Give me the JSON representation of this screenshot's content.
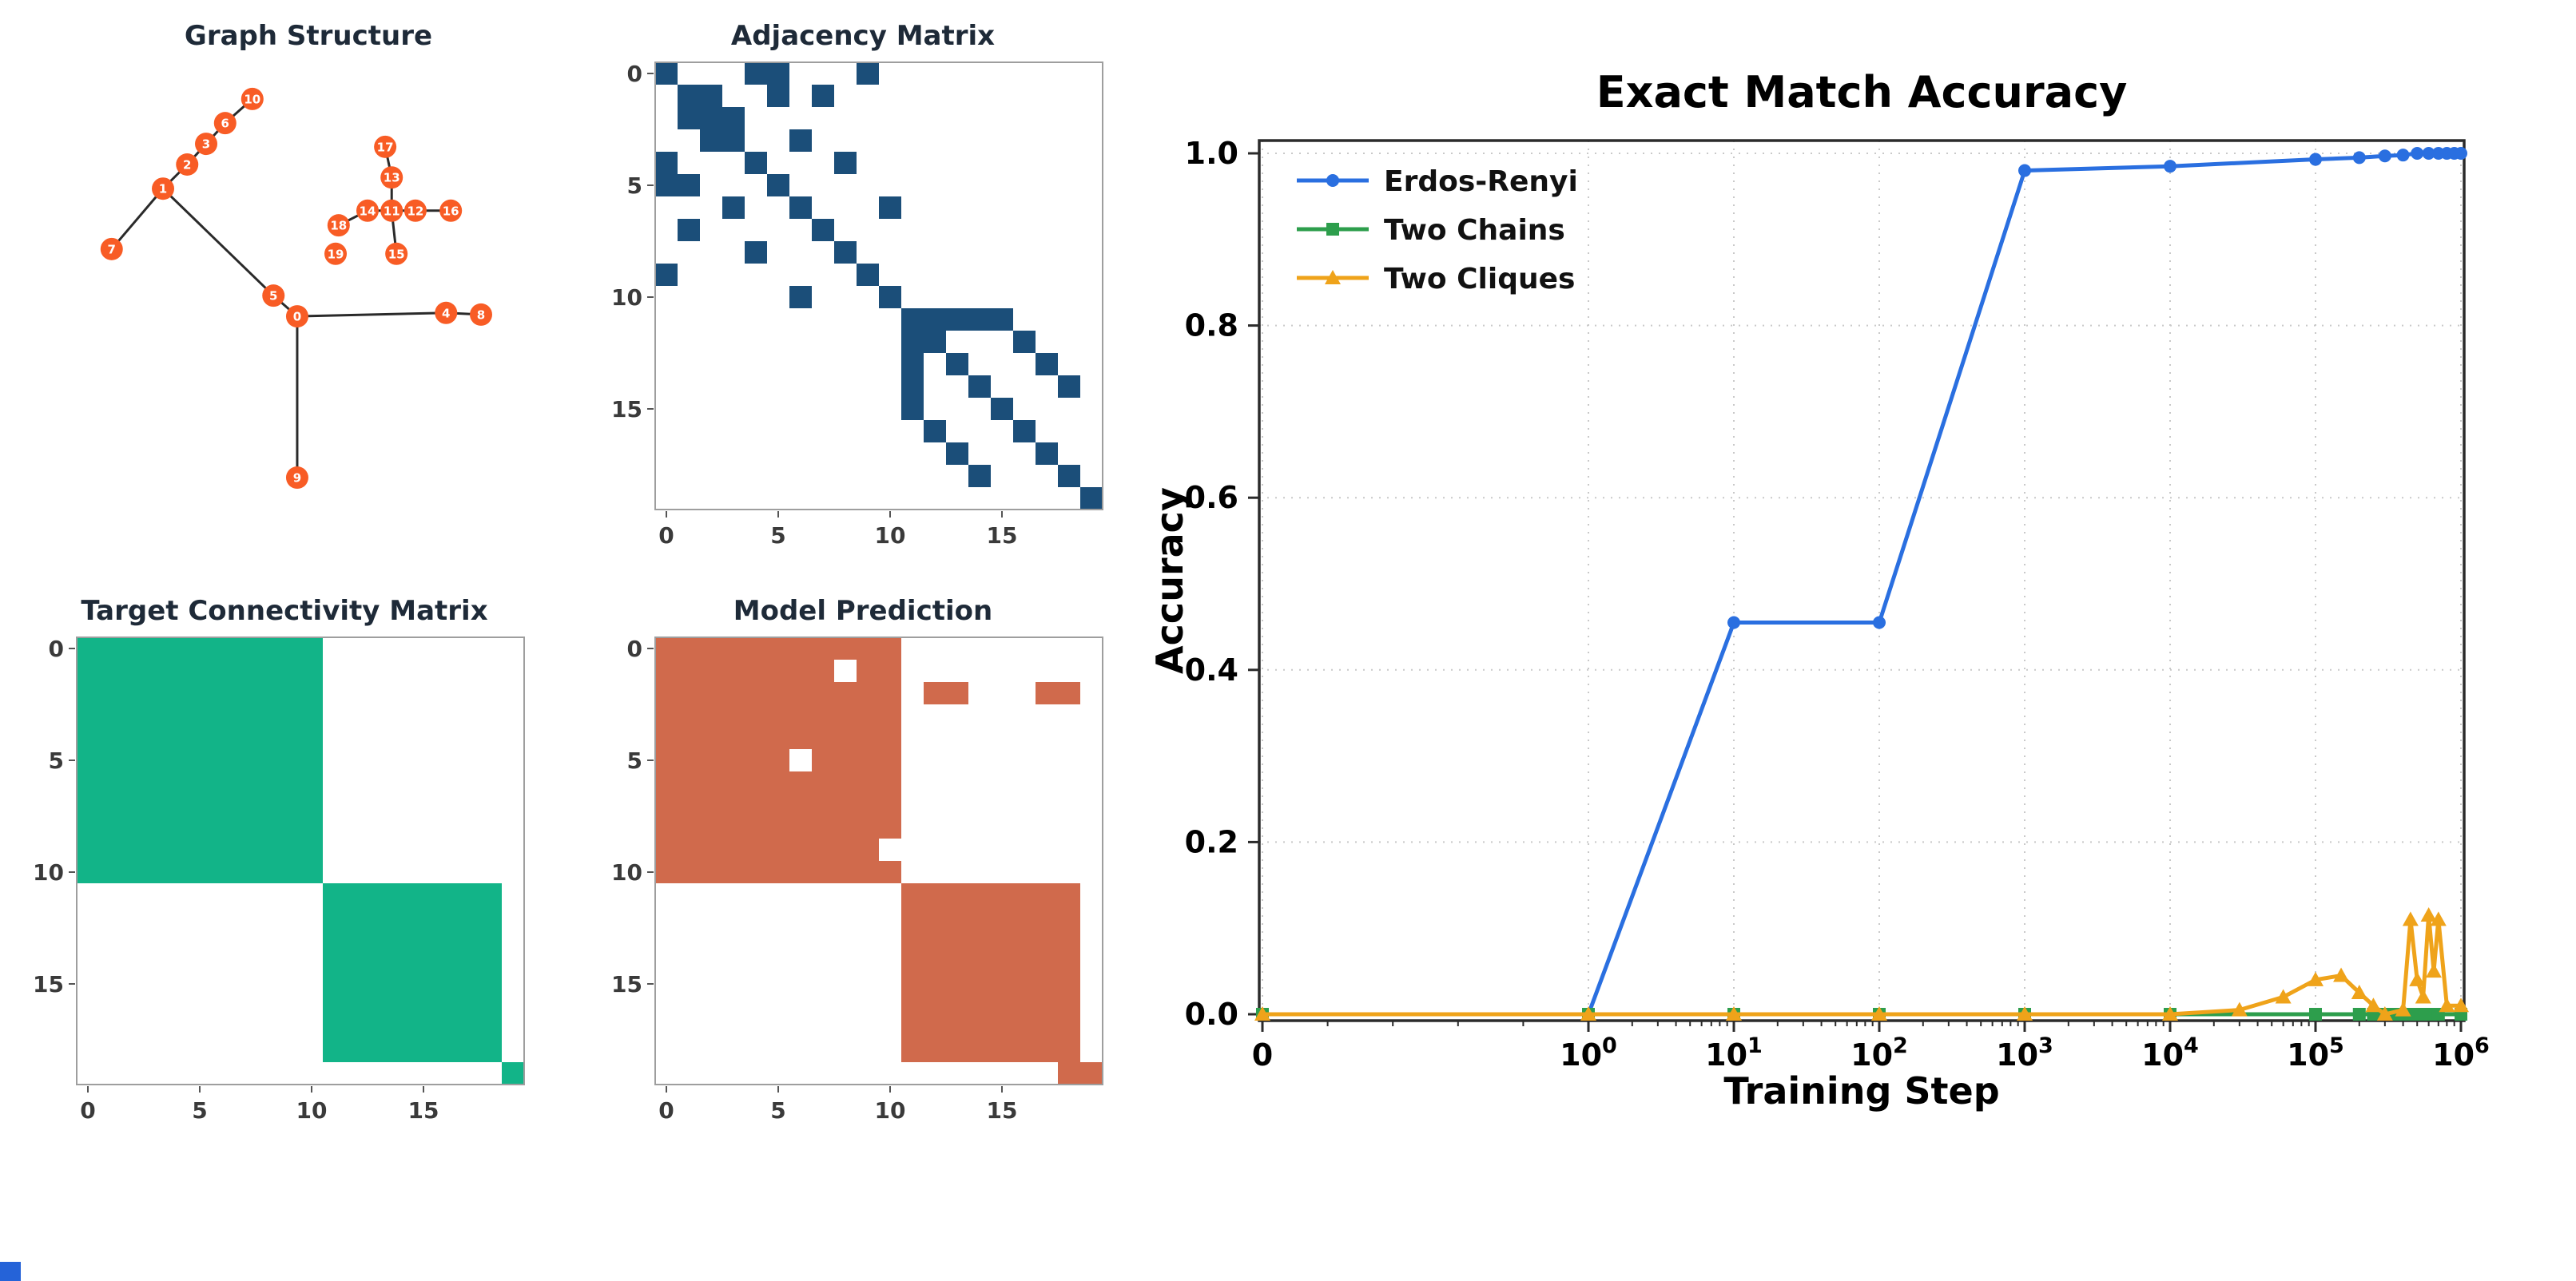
{
  "artifact": {
    "color": "#2563d8"
  },
  "chart_data": [
    {
      "id": "graph_structure",
      "type": "scatter",
      "title": "Graph Structure",
      "node_color": "#f85c25",
      "edge_color": "#2a2a2a",
      "label_color": "#ffffff",
      "nodes": [
        {
          "id": 0,
          "x": 47.4,
          "y": 55.2
        },
        {
          "id": 1,
          "x": 16.3,
          "y": 25.6
        },
        {
          "id": 2,
          "x": 21.9,
          "y": 20.0
        },
        {
          "id": 3,
          "x": 26.3,
          "y": 15.2
        },
        {
          "id": 4,
          "x": 81.9,
          "y": 54.4
        },
        {
          "id": 5,
          "x": 41.9,
          "y": 50.4
        },
        {
          "id": 6,
          "x": 30.7,
          "y": 10.4
        },
        {
          "id": 7,
          "x": 4.4,
          "y": 39.6
        },
        {
          "id": 8,
          "x": 90.0,
          "y": 54.8
        },
        {
          "id": 9,
          "x": 47.4,
          "y": 92.6
        },
        {
          "id": 10,
          "x": 37.0,
          "y": 4.8
        },
        {
          "id": 11,
          "x": 69.3,
          "y": 30.7
        },
        {
          "id": 12,
          "x": 74.8,
          "y": 30.7
        },
        {
          "id": 13,
          "x": 69.3,
          "y": 23.0
        },
        {
          "id": 14,
          "x": 63.7,
          "y": 30.7
        },
        {
          "id": 15,
          "x": 70.4,
          "y": 40.7
        },
        {
          "id": 16,
          "x": 83.0,
          "y": 30.7
        },
        {
          "id": 17,
          "x": 67.8,
          "y": 15.9
        },
        {
          "id": 18,
          "x": 57.0,
          "y": 34.1
        },
        {
          "id": 19,
          "x": 56.3,
          "y": 40.7
        }
      ],
      "edges": [
        [
          0,
          4
        ],
        [
          0,
          5
        ],
        [
          0,
          9
        ],
        [
          4,
          8
        ],
        [
          1,
          5
        ],
        [
          1,
          2
        ],
        [
          1,
          7
        ],
        [
          2,
          3
        ],
        [
          3,
          6
        ],
        [
          6,
          10
        ],
        [
          11,
          12
        ],
        [
          11,
          13
        ],
        [
          11,
          14
        ],
        [
          11,
          15
        ],
        [
          12,
          16
        ],
        [
          13,
          17
        ],
        [
          14,
          18
        ]
      ]
    },
    {
      "id": "adjacency_matrix",
      "type": "heatmap",
      "title": "Adjacency Matrix",
      "cell_color": "#1b4e79",
      "ticks": [
        0,
        5,
        10,
        15
      ],
      "rows": [
        "10001100010000000000",
        "01100101000000000000",
        "01110000000000000000",
        "00110010000000000000",
        "10001000100000000000",
        "11000100000000000000",
        "00010010001000000000",
        "01000001000000000000",
        "00001000100000000000",
        "10000000010000000000",
        "00000010001000000000",
        "00000000000111110000",
        "00000000000110001000",
        "00000000000101000100",
        "00000000000100100010",
        "00000000000100010000",
        "00000000000010001000",
        "00000000000001000100",
        "00000000000000100010",
        "00000000000000000001"
      ]
    },
    {
      "id": "target_connectivity",
      "type": "heatmap",
      "title": "Target Connectivity Matrix",
      "cell_color": "#12b488",
      "ticks": [
        0,
        5,
        10,
        15
      ],
      "rows": [
        "11111111111000000000",
        "11111111111000000000",
        "11111111111000000000",
        "11111111111000000000",
        "11111111111000000000",
        "11111111111000000000",
        "11111111111000000000",
        "11111111111000000000",
        "11111111111000000000",
        "11111111111000000000",
        "11111111111000000000",
        "00000000000111111110",
        "00000000000111111110",
        "00000000000111111110",
        "00000000000111111110",
        "00000000000111111110",
        "00000000000111111110",
        "00000000000111111110",
        "00000000000111111110",
        "00000000000000000001"
      ]
    },
    {
      "id": "model_prediction",
      "type": "heatmap",
      "title": "Model Prediction",
      "cell_color": "#d06a4c",
      "ticks": [
        0,
        5,
        10,
        15
      ],
      "rows": [
        "11111111111000000000",
        "11111111011000000000",
        "11111111111011000110",
        "11111111111000000000",
        "11111111111000000000",
        "11111101111000000000",
        "11111111111000000000",
        "11111111111000000000",
        "11111111111000000000",
        "11111111110000000000",
        "11111111111000000000",
        "00000000000111111110",
        "00000000000111111110",
        "00000000000111111110",
        "00000000000111111110",
        "00000000000111111110",
        "00000000000111111110",
        "00000000000111111110",
        "00000000000111111110",
        "00000000000000000011"
      ]
    },
    {
      "id": "exact_match_accuracy",
      "type": "line",
      "title": "Exact Match Accuracy",
      "xlabel": "Training Step",
      "ylabel": "Accuracy",
      "x_scale": "symlog",
      "x_range": [
        0,
        1000000
      ],
      "ylim": [
        0,
        1.02
      ],
      "grid": true,
      "grid_color": "#c9c9c9",
      "legend_position": "upper left",
      "y_ticks": [
        0,
        0.2,
        0.4,
        0.6,
        0.8,
        1.0
      ],
      "x_ticks": [
        {
          "text": "0",
          "value": 0
        },
        {
          "text": "10",
          "sup": "0",
          "value": 1
        },
        {
          "text": "10",
          "sup": "1",
          "value": 10
        },
        {
          "text": "10",
          "sup": "2",
          "value": 100
        },
        {
          "text": "10",
          "sup": "3",
          "value": 1000
        },
        {
          "text": "10",
          "sup": "4",
          "value": 10000
        },
        {
          "text": "10",
          "sup": "5",
          "value": 100000
        },
        {
          "text": "10",
          "sup": "6",
          "value": 1000000
        }
      ],
      "series": [
        {
          "name": "Erdos-Renyi",
          "color": "#2a6fe0",
          "marker": "circle",
          "x": [
            0,
            1,
            10,
            100,
            1000,
            10000,
            100000,
            200000,
            300000,
            400000,
            500000,
            600000,
            700000,
            800000,
            900000,
            1000000
          ],
          "y": [
            0,
            0,
            0.455,
            0.455,
            0.98,
            0.985,
            0.993,
            0.995,
            0.997,
            0.998,
            1.0,
            1.0,
            1.0,
            1.0,
            1.0,
            1.0
          ]
        },
        {
          "name": "Two Chains",
          "color": "#2d9e4c",
          "marker": "square",
          "x": [
            0,
            1,
            10,
            100,
            1000,
            10000,
            100000,
            200000,
            250000,
            300000,
            350000,
            400000,
            450000,
            500000,
            550000,
            600000,
            650000,
            700000,
            1000000
          ],
          "y": [
            0,
            0,
            0,
            0,
            0,
            0,
            0,
            0,
            0,
            0,
            0,
            0,
            0,
            0,
            0,
            0,
            0,
            0,
            0
          ]
        },
        {
          "name": "Two Cliques",
          "color": "#efa31a",
          "marker": "triangle",
          "x": [
            0,
            1,
            10,
            100,
            1000,
            10000,
            30000,
            60000,
            100000,
            150000,
            200000,
            250000,
            300000,
            400000,
            450000,
            500000,
            550000,
            600000,
            650000,
            700000,
            800000,
            1000000
          ],
          "y": [
            0,
            0,
            0,
            0,
            0,
            0,
            0.005,
            0.02,
            0.04,
            0.045,
            0.025,
            0.01,
            0,
            0.005,
            0.11,
            0.04,
            0.02,
            0.115,
            0.05,
            0.11,
            0.01,
            0.01
          ]
        }
      ]
    }
  ]
}
